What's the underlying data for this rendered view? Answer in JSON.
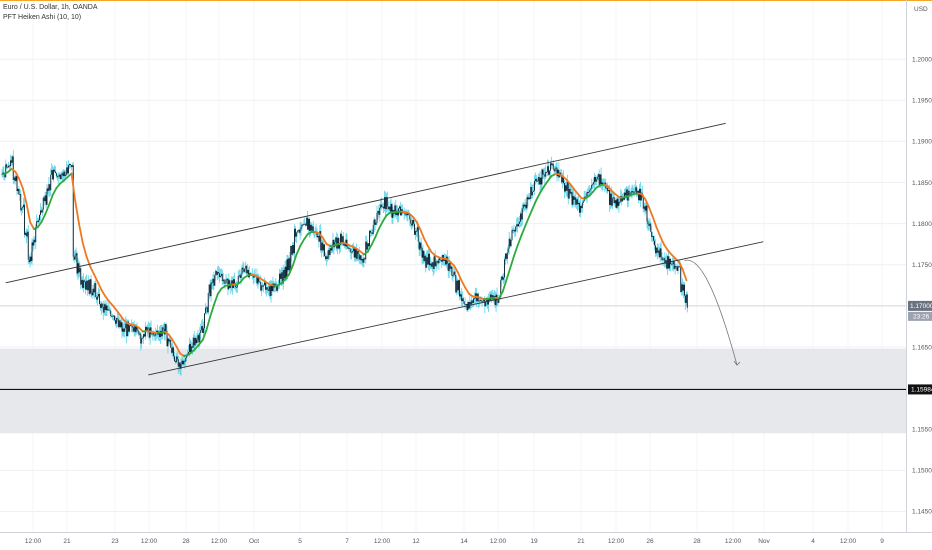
{
  "legend": {
    "symbol_line": "Euro / U.S. Dollar, 1h, OANDA",
    "indicator_line": "PFT Heiken Ashi (10, 10)"
  },
  "colors": {
    "candle_body": "#0d1b2a",
    "wick": "#5ad2e8",
    "ma_up": "#2eaa3c",
    "ma_down": "#f07820",
    "channel": "#333333",
    "zone": "#e7e8ec",
    "level_line": "#111111",
    "top_border": "#f5a623"
  },
  "chart_data": {
    "type": "candlestick",
    "title": "Euro / U.S. Dollar, 1h, OANDA",
    "indicator": "PFT Heiken Ashi (10, 10)",
    "x_tick_labels": [
      "12:00",
      "21",
      "23",
      "12:00",
      "28",
      "12:00",
      "Oct",
      "5",
      "7",
      "12:00",
      "12",
      "14",
      "12:00",
      "19",
      "21",
      "12:00",
      "26",
      "28",
      "12:00",
      "Nov",
      "4",
      "12:00",
      "9"
    ],
    "y_tick_labels": [
      "1.20000",
      "1.19500",
      "1.19000",
      "1.18500",
      "1.18000",
      "1.17500",
      "1.17000",
      "1.16500",
      "1.16000",
      "1.15500",
      "1.15000",
      "1.14500"
    ],
    "y_tick_values": [
      1.2,
      1.195,
      1.19,
      1.185,
      1.18,
      1.175,
      1.17,
      1.165,
      1.16,
      1.155,
      1.15,
      1.145
    ],
    "ylim": [
      1.1425,
      1.2072
    ],
    "top_partial_label": "USD",
    "current_price": {
      "label": "1.17000",
      "value": 1.17,
      "countdown": "23:26"
    },
    "horizontal_level": {
      "label": "1.15984",
      "value": 1.15984
    },
    "zone": {
      "from": 1.1545,
      "to": 1.1648
    },
    "channel": {
      "upper": {
        "from": {
          "bar": 1,
          "value": 1.1728
        },
        "to": {
          "bar": 193,
          "value": 1.1922
        }
      },
      "lower": {
        "from": {
          "bar": 39,
          "value": 1.1616
        },
        "to": {
          "bar": 203,
          "value": 1.1778
        }
      }
    },
    "forecast_arrow": {
      "from": {
        "bar": 182,
        "value": 1.1755
      },
      "to": {
        "bar": 196,
        "value": 1.1628
      }
    },
    "anchors": [
      [
        0,
        1.186
      ],
      [
        2,
        1.1875
      ],
      [
        5,
        1.182
      ],
      [
        7,
        1.1755
      ],
      [
        9,
        1.18
      ],
      [
        11,
        1.183
      ],
      [
        13,
        1.186
      ],
      [
        16,
        1.186
      ],
      [
        18,
        1.187
      ],
      [
        19,
        1.176
      ],
      [
        21,
        1.173
      ],
      [
        24,
        1.172
      ],
      [
        26,
        1.17
      ],
      [
        29,
        1.169
      ],
      [
        32,
        1.167
      ],
      [
        35,
        1.1675
      ],
      [
        37,
        1.166
      ],
      [
        38,
        1.167
      ],
      [
        40,
        1.1665
      ],
      [
        43,
        1.167
      ],
      [
        45,
        1.1645
      ],
      [
        47,
        1.1625
      ],
      [
        50,
        1.165
      ],
      [
        53,
        1.167
      ],
      [
        55,
        1.172
      ],
      [
        57,
        1.174
      ],
      [
        59,
        1.173
      ],
      [
        62,
        1.1725
      ],
      [
        64,
        1.1745
      ],
      [
        66,
        1.174
      ],
      [
        69,
        1.1725
      ],
      [
        71,
        1.172
      ],
      [
        73,
        1.1725
      ],
      [
        76,
        1.175
      ],
      [
        78,
        1.179
      ],
      [
        81,
        1.18
      ],
      [
        84,
        1.1785
      ],
      [
        86,
        1.176
      ],
      [
        88,
        1.1775
      ],
      [
        90,
        1.178
      ],
      [
        92,
        1.177
      ],
      [
        94,
        1.1765
      ],
      [
        96,
        1.1755
      ],
      [
        98,
        1.179
      ],
      [
        100,
        1.1815
      ],
      [
        102,
        1.1825
      ],
      [
        104,
        1.1815
      ],
      [
        106,
        1.1815
      ],
      [
        108,
        1.181
      ],
      [
        110,
        1.179
      ],
      [
        112,
        1.176
      ],
      [
        114,
        1.175
      ],
      [
        116,
        1.1755
      ],
      [
        118,
        1.1755
      ],
      [
        120,
        1.174
      ],
      [
        122,
        1.171
      ],
      [
        124,
        1.17
      ],
      [
        126,
        1.171
      ],
      [
        128,
        1.1705
      ],
      [
        130,
        1.1712
      ],
      [
        132,
        1.1708
      ],
      [
        134,
        1.176
      ],
      [
        136,
        1.179
      ],
      [
        138,
        1.181
      ],
      [
        140,
        1.183
      ],
      [
        142,
        1.185
      ],
      [
        144,
        1.186
      ],
      [
        146,
        1.187
      ],
      [
        148,
        1.186
      ],
      [
        150,
        1.1845
      ],
      [
        152,
        1.183
      ],
      [
        154,
        1.182
      ],
      [
        156,
        1.184
      ],
      [
        158,
        1.1855
      ],
      [
        160,
        1.185
      ],
      [
        162,
        1.183
      ],
      [
        164,
        1.1825
      ],
      [
        166,
        1.1835
      ],
      [
        168,
        1.184
      ],
      [
        170,
        1.1835
      ],
      [
        172,
        1.18
      ],
      [
        174,
        1.177
      ],
      [
        176,
        1.1755
      ],
      [
        178,
        1.1752
      ],
      [
        180,
        1.1745
      ],
      [
        181,
        1.1725
      ],
      [
        182,
        1.1705
      ]
    ]
  }
}
